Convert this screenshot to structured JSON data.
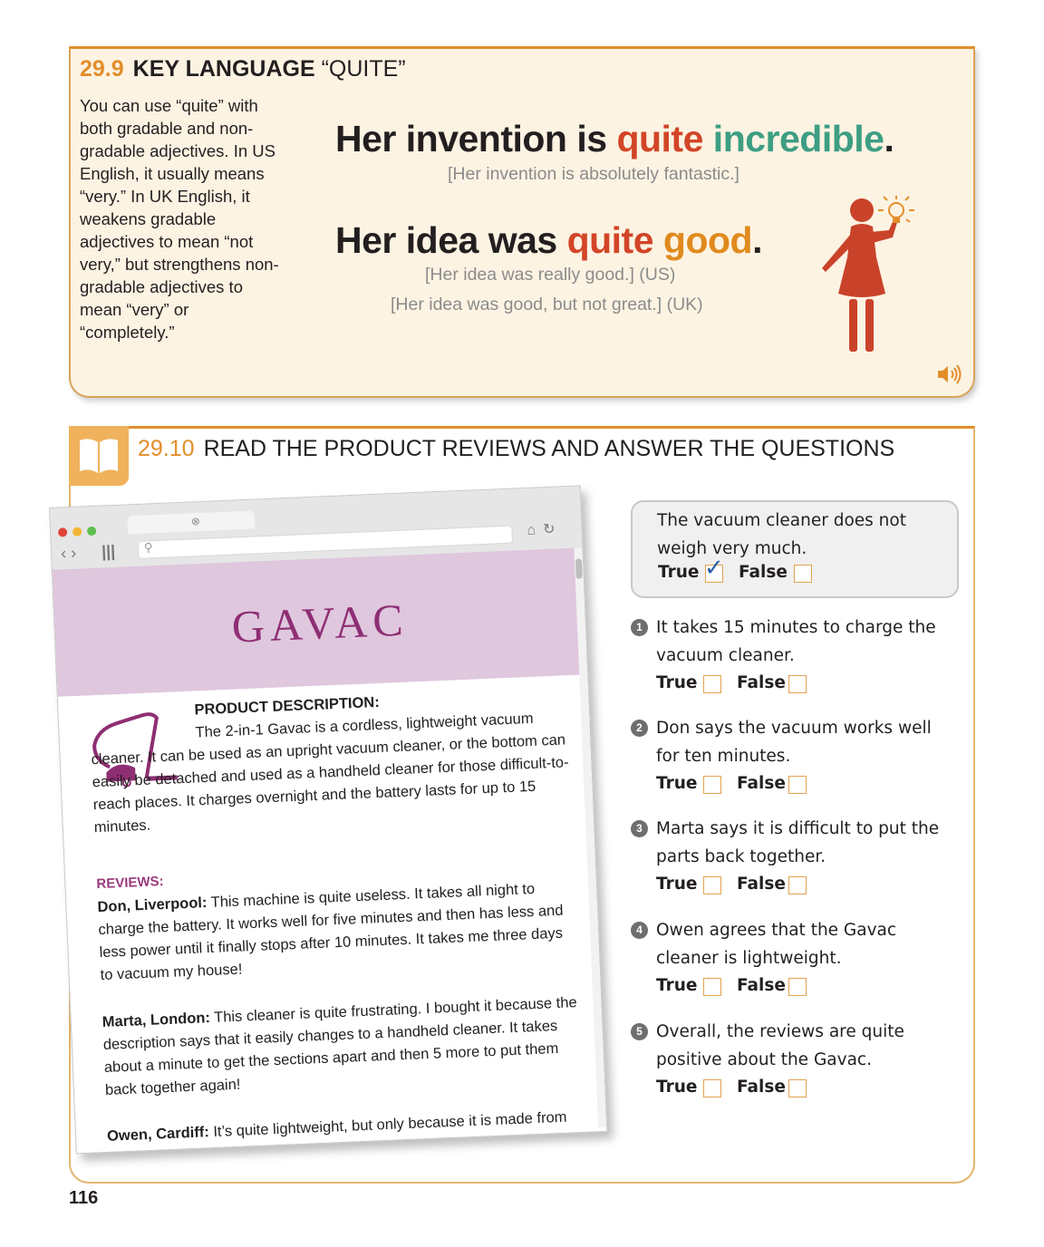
{
  "key_language": {
    "number": "29.9",
    "heading": "KEY LANGUAGE",
    "heading_quote": "“QUITE”",
    "description": "You can use “quite” with both gradable and non-gradable adjectives. In US English, it usually means “very.” In UK English, it weakens gradable adjectives to mean “not very,” but strengthens non-gradable adjectives to mean “very” or “completely.”",
    "example1": {
      "prefix": "Her invention is ",
      "quite": "quite",
      "adjective": "incredible",
      "end": ".",
      "gloss": "[Her invention is absolutely fantastic.]"
    },
    "example2": {
      "prefix": "Her idea was ",
      "quite": "quite",
      "adjective": "good",
      "end": ".",
      "gloss_us": "[Her idea was really good.] (US)",
      "gloss_uk": "[Her idea was good, but not great.] (UK)"
    },
    "colors": {
      "quite": "#d24527",
      "incredible": "#3d9e83",
      "good": "#e08a1e",
      "accent": "#e28e2b"
    },
    "icons": [
      "woman-lightbulb-icon",
      "speaker-icon"
    ]
  },
  "reading": {
    "number": "29.10",
    "heading": "READ THE PRODUCT REVIEWS AND ANSWER THE QUESTIONS",
    "icon": "open-book-icon",
    "browser": {
      "logo": "GAVAC",
      "product_heading": "PRODUCT DESCRIPTION:",
      "product_text": "The 2-in-1 Gavac is a cordless, lightweight vacuum cleaner. It can be used as an upright vacuum cleaner, or the bottom can easily be detached and used as a handheld cleaner for those difficult-to-reach places. It charges overnight and the battery lasts for up to 15 minutes.",
      "reviews_heading": "REVIEWS:",
      "reviews": [
        {
          "author": "Don, Liverpool:",
          "text": " This machine is quite useless. It takes all night to charge the battery. It works well for five minutes and then has less and less power until it finally stops after 10 minutes. It takes me three days to vacuum my house!"
        },
        {
          "author": "Marta, London:",
          "text": " This cleaner is quite frustrating. I bought it because the description says that it easily changes to a handheld cleaner. It takes about a minute to get the sections apart and then 5 more to put them back together again!"
        },
        {
          "author": "Owen, Cardiff:",
          "text": " It’s quite lightweight, but only because it is made from awful, cheap materials that break quickly. Do not buy."
        }
      ]
    },
    "true_label": "True",
    "false_label": "False",
    "example_question": {
      "text": "The vacuum cleaner does not weigh very much.",
      "answer": "True"
    },
    "questions": [
      {
        "num": "1",
        "text": "It takes 15 minutes to charge the vacuum cleaner."
      },
      {
        "num": "2",
        "text": "Don says the vacuum works well for ten minutes."
      },
      {
        "num": "3",
        "text": "Marta says it is difficult to put the parts back together."
      },
      {
        "num": "4",
        "text": "Owen agrees that the Gavac cleaner is lightweight."
      },
      {
        "num": "5",
        "text": "Overall, the reviews are quite positive about the Gavac."
      }
    ]
  },
  "page_number": "116"
}
